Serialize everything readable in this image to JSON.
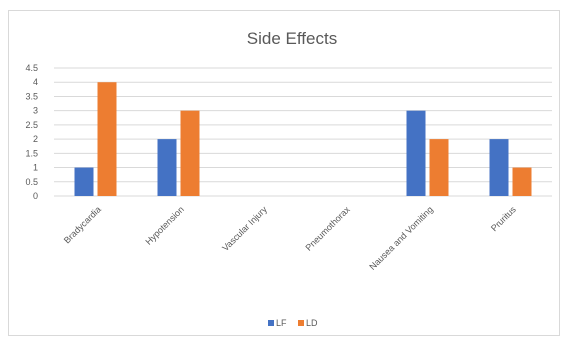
{
  "chart_data": {
    "type": "bar",
    "title": "Side Effects",
    "categories": [
      "Bradycardia",
      "Hypotension",
      "Vascular Injury",
      "Pneumothorax",
      "Nausea and Vomiting",
      "Pruritus"
    ],
    "series": [
      {
        "name": "LF",
        "color": "#4472c4",
        "values": [
          1,
          2,
          0,
          0,
          3,
          2
        ]
      },
      {
        "name": "LD",
        "color": "#ed7d31",
        "values": [
          4,
          3,
          0,
          0,
          2,
          1
        ]
      }
    ],
    "y_ticks": [
      "0",
      "0.5",
      "1",
      "1.5",
      "2",
      "2.5",
      "3",
      "3.5",
      "4",
      "4.5"
    ],
    "ylim": [
      0,
      4.5
    ],
    "grid": true,
    "legend_position": "bottom"
  }
}
